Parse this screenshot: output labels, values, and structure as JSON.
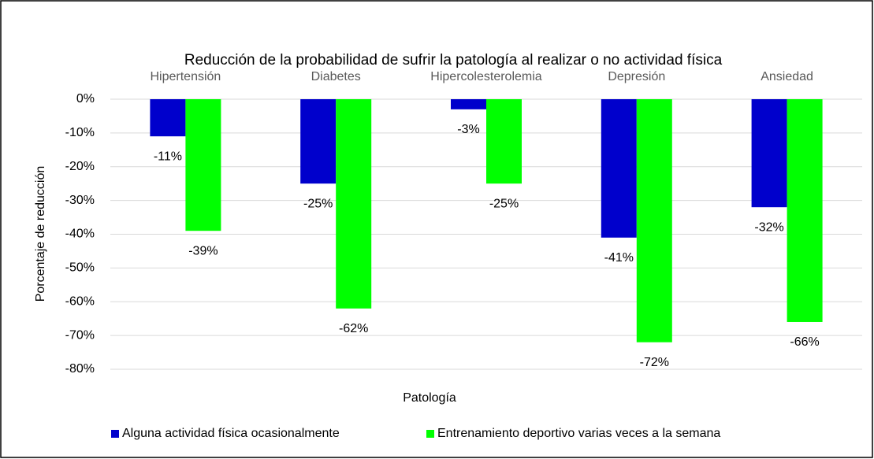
{
  "chart_data": {
    "type": "bar",
    "title": "Reducción de la probabilidad de sufrir la patología al realizar o no actividad física",
    "x_label": "Patología",
    "y_label": "Porcentaje de reducción",
    "categories": [
      "Hipertensión",
      "Diabetes",
      "Hipercolesterolemia",
      "Depresión",
      "Ansiedad"
    ],
    "series": [
      {
        "name": "Alguna actividad física ocasionalmente",
        "color": "#0000cc",
        "values": [
          -11,
          -25,
          -3,
          -41,
          -32
        ],
        "value_labels": [
          "-11%",
          "-25%",
          "-3%",
          "-41%",
          "-32%"
        ]
      },
      {
        "name": "Entrenamiento deportivo varias veces a la semana",
        "color": "#00ff00",
        "values": [
          -39,
          -62,
          -25,
          -72,
          -66
        ],
        "value_labels": [
          "-39%",
          "-62%",
          "-25%",
          "-72%",
          "-66%"
        ]
      }
    ],
    "ylim": [
      -80,
      0
    ],
    "yticks": [
      {
        "value": 0,
        "label": "0%"
      },
      {
        "value": -10,
        "label": "-10%"
      },
      {
        "value": -20,
        "label": "-20%"
      },
      {
        "value": -30,
        "label": "-30%"
      },
      {
        "value": -40,
        "label": "-40%"
      },
      {
        "value": -50,
        "label": "-50%"
      },
      {
        "value": -60,
        "label": "-60%"
      },
      {
        "value": -70,
        "label": "-70%"
      },
      {
        "value": -80,
        "label": "-80%"
      }
    ],
    "grid": true,
    "legend": "bottom"
  }
}
